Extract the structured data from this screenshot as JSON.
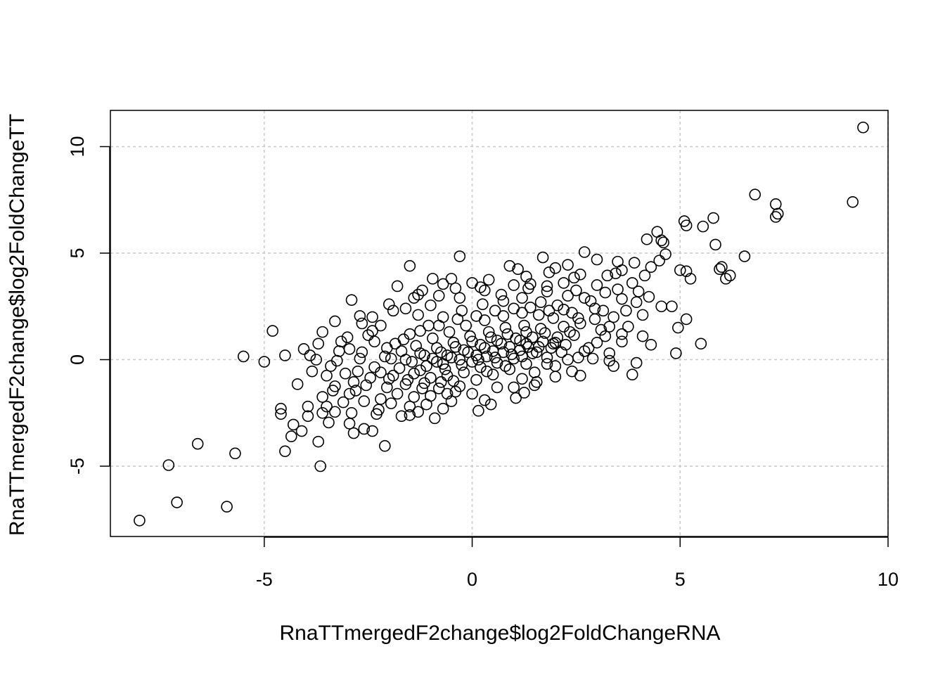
{
  "chart_data": {
    "type": "scatter",
    "xlabel": "RnaTTmergedF2change$log2FoldChangeRNA",
    "ylabel": "RnaTTmergedF2change$log2FoldChangeTT",
    "xlim": [
      -8.7,
      10.0
    ],
    "ylim": [
      -8.3,
      11.7
    ],
    "x_ticks": [
      -5,
      0,
      5,
      10
    ],
    "y_ticks": [
      -5,
      0,
      5,
      10
    ],
    "grid": true,
    "marker": "open-circle",
    "points": [
      [
        9.4,
        10.9
      ],
      [
        9.15,
        7.4
      ],
      [
        6.8,
        7.75
      ],
      [
        7.3,
        7.3
      ],
      [
        7.35,
        6.85
      ],
      [
        7.3,
        6.7
      ],
      [
        5.8,
        6.65
      ],
      [
        5.55,
        6.25
      ],
      [
        5.1,
        6.5
      ],
      [
        5.15,
        6.3
      ],
      [
        5.85,
        5.4
      ],
      [
        6.55,
        4.85
      ],
      [
        4.45,
        6.0
      ],
      [
        4.55,
        5.6
      ],
      [
        4.6,
        5.5
      ],
      [
        4.2,
        5.65
      ],
      [
        4.65,
        4.95
      ],
      [
        4.5,
        4.65
      ],
      [
        5.95,
        4.25
      ],
      [
        6.0,
        4.35
      ],
      [
        6.1,
        3.8
      ],
      [
        6.2,
        3.95
      ],
      [
        5.0,
        4.2
      ],
      [
        5.15,
        4.15
      ],
      [
        5.25,
        3.8
      ],
      [
        4.95,
        1.5
      ],
      [
        5.15,
        1.9
      ],
      [
        5.5,
        0.75
      ],
      [
        4.9,
        0.3
      ],
      [
        4.55,
        2.5
      ],
      [
        4.8,
        2.5
      ],
      [
        4.3,
        0.7
      ],
      [
        4.1,
        1.1
      ],
      [
        3.85,
        -0.7
      ],
      [
        3.95,
        -0.15
      ],
      [
        2.7,
        5.05
      ],
      [
        1.7,
        4.8
      ],
      [
        -1.5,
        4.4
      ],
      [
        -0.3,
        4.85
      ],
      [
        -2.9,
        2.8
      ],
      [
        -4.8,
        1.35
      ],
      [
        -4.5,
        0.2
      ],
      [
        -5.5,
        0.15
      ],
      [
        -5.0,
        -0.1
      ],
      [
        -4.2,
        -1.15
      ],
      [
        -4.6,
        -2.3
      ],
      [
        -4.6,
        -2.55
      ],
      [
        -4.3,
        -3.05
      ],
      [
        -4.1,
        -3.35
      ],
      [
        -3.95,
        -2.65
      ],
      [
        -3.95,
        -2.2
      ],
      [
        -4.35,
        -3.6
      ],
      [
        -4.5,
        -4.3
      ],
      [
        -3.7,
        -3.85
      ],
      [
        -3.65,
        -5.0
      ],
      [
        -3.45,
        -2.95
      ],
      [
        -3.3,
        -2.45
      ],
      [
        -2.95,
        -3.0
      ],
      [
        -2.85,
        -3.45
      ],
      [
        -2.6,
        -3.25
      ],
      [
        -2.4,
        -3.35
      ],
      [
        -2.1,
        -4.05
      ],
      [
        -1.7,
        -2.65
      ],
      [
        -0.9,
        -2.75
      ],
      [
        -6.6,
        -3.95
      ],
      [
        -5.7,
        -4.4
      ],
      [
        -7.3,
        -4.95
      ],
      [
        -7.1,
        -6.7
      ],
      [
        -5.9,
        -6.9
      ],
      [
        -8.0,
        -7.55
      ],
      [
        -3.6,
        1.3
      ],
      [
        -3.9,
        0.2
      ],
      [
        -4.05,
        0.5
      ],
      [
        -3.7,
        0.75
      ],
      [
        -3.85,
        -0.55
      ],
      [
        -3.5,
        -0.75
      ],
      [
        -3.3,
        -1.25
      ],
      [
        -3.6,
        -1.75
      ],
      [
        -3.1,
        -2.0
      ],
      [
        -2.8,
        -1.45
      ],
      [
        -3.15,
        0.85
      ],
      [
        -3.0,
        1.05
      ],
      [
        -3.3,
        1.8
      ],
      [
        -2.7,
        2.05
      ],
      [
        -2.65,
        1.7
      ],
      [
        -1.8,
        3.45
      ],
      [
        -1.2,
        3.25
      ],
      [
        -0.5,
        3.8
      ],
      [
        0.4,
        3.75
      ],
      [
        0.9,
        4.4
      ],
      [
        1.1,
        4.25
      ],
      [
        1.35,
        3.35
      ],
      [
        2.0,
        4.3
      ],
      [
        2.3,
        4.45
      ],
      [
        2.6,
        4.0
      ],
      [
        3.0,
        4.7
      ],
      [
        3.5,
        4.6
      ],
      [
        3.6,
        4.2
      ],
      [
        3.9,
        4.55
      ],
      [
        3.85,
        3.6
      ],
      [
        3.5,
        3.3
      ],
      [
        3.2,
        3.15
      ],
      [
        3.6,
        2.85
      ],
      [
        3.95,
        2.7
      ],
      [
        3.7,
        2.3
      ],
      [
        3.3,
        1.55
      ],
      [
        3.6,
        1.2
      ],
      [
        3.6,
        0.85
      ],
      [
        3.3,
        0.3
      ],
      [
        2.9,
        0.05
      ],
      [
        3.4,
        -0.3
      ],
      [
        2.4,
        -0.55
      ],
      [
        2.6,
        -0.75
      ],
      [
        2.0,
        -0.8
      ],
      [
        1.55,
        -1.05
      ],
      [
        1.2,
        -0.9
      ],
      [
        1.05,
        -1.8
      ],
      [
        0.45,
        -2.1
      ],
      [
        0.15,
        -2.4
      ],
      [
        -0.5,
        -1.95
      ],
      [
        -0.6,
        -1.6
      ],
      [
        -1.1,
        -2.1
      ],
      [
        -1.4,
        -1.75
      ],
      [
        -1.95,
        -2.05
      ],
      [
        -2.2,
        -1.85
      ],
      [
        -2.6,
        -1.95
      ],
      [
        -2.25,
        -2.35
      ],
      [
        -2.55,
        -1.2
      ],
      [
        -2.75,
        -0.55
      ],
      [
        -2.65,
        0.35
      ],
      [
        -2.35,
        0.85
      ],
      [
        -2.4,
        1.35
      ],
      [
        -2.2,
        1.6
      ],
      [
        -1.6,
        2.4
      ],
      [
        -1.3,
        2.1
      ],
      [
        -0.8,
        3.0
      ],
      [
        -1.0,
        2.55
      ],
      [
        -0.3,
        2.9
      ],
      [
        0.2,
        3.4
      ],
      [
        0.7,
        3.05
      ],
      [
        1.4,
        3.55
      ],
      [
        1.8,
        3.2
      ],
      [
        2.2,
        3.6
      ],
      [
        2.5,
        3.25
      ],
      [
        2.85,
        2.75
      ],
      [
        3.15,
        2.3
      ],
      [
        2.95,
        1.9
      ],
      [
        3.2,
        1.1
      ],
      [
        2.8,
        0.55
      ],
      [
        2.55,
        0.1
      ],
      [
        2.15,
        0.35
      ],
      [
        1.8,
        0.1
      ],
      [
        1.3,
        -0.2
      ],
      [
        0.9,
        -0.45
      ],
      [
        0.5,
        -0.7
      ],
      [
        0.1,
        -0.95
      ],
      [
        -0.3,
        -1.25
      ],
      [
        -0.75,
        -1.05
      ],
      [
        -1.2,
        -1.35
      ],
      [
        -1.6,
        -1.15
      ],
      [
        -2.0,
        -0.9
      ],
      [
        -2.35,
        -0.35
      ],
      [
        -2.1,
        0.15
      ],
      [
        -1.85,
        0.75
      ],
      [
        -1.5,
        1.2
      ],
      [
        -1.05,
        1.6
      ],
      [
        -0.7,
        2.0
      ],
      [
        -0.25,
        2.3
      ],
      [
        0.25,
        2.6
      ],
      [
        0.75,
        2.75
      ],
      [
        1.2,
        2.9
      ],
      [
        1.65,
        2.7
      ],
      [
        2.05,
        2.55
      ],
      [
        2.4,
        2.2
      ],
      [
        2.6,
        1.7
      ],
      [
        2.45,
        1.15
      ],
      [
        2.25,
        0.7
      ],
      [
        1.9,
        0.55
      ],
      [
        1.45,
        0.3
      ],
      [
        1.0,
        0.05
      ],
      [
        0.6,
        -0.15
      ],
      [
        0.2,
        -0.35
      ],
      [
        -0.2,
        -0.6
      ],
      [
        -0.6,
        -0.75
      ],
      [
        -1.0,
        -0.85
      ],
      [
        -1.4,
        -0.65
      ],
      [
        -1.75,
        -0.4
      ],
      [
        -1.95,
        0.05
      ],
      [
        -1.7,
        0.4
      ],
      [
        -1.35,
        0.65
      ],
      [
        -0.95,
        1.0
      ],
      [
        -0.55,
        1.3
      ],
      [
        -0.15,
        1.6
      ],
      [
        0.3,
        1.85
      ],
      [
        0.75,
        2.05
      ],
      [
        1.2,
        2.2
      ],
      [
        1.6,
        2.1
      ],
      [
        1.95,
        1.95
      ],
      [
        2.2,
        1.55
      ],
      [
        2.05,
        1.05
      ],
      [
        1.7,
        0.85
      ],
      [
        1.3,
        0.75
      ],
      [
        0.9,
        0.6
      ],
      [
        0.5,
        0.4
      ],
      [
        0.1,
        0.2
      ],
      [
        -0.3,
        0.0
      ],
      [
        -0.7,
        -0.2
      ],
      [
        -1.1,
        -0.3
      ],
      [
        -1.45,
        -0.1
      ],
      [
        -1.25,
        0.3
      ],
      [
        -0.85,
        0.55
      ],
      [
        -0.45,
        0.8
      ],
      [
        -0.05,
        1.1
      ],
      [
        0.4,
        1.3
      ],
      [
        0.8,
        1.5
      ],
      [
        1.25,
        1.6
      ],
      [
        1.65,
        1.45
      ],
      [
        1.45,
        1.05
      ],
      [
        1.05,
        1.0
      ],
      [
        0.6,
        0.9
      ],
      [
        0.2,
        0.7
      ],
      [
        -0.2,
        0.45
      ],
      [
        -0.6,
        0.2
      ],
      [
        -0.95,
        0.05
      ],
      [
        0.0,
        -0.1
      ],
      [
        0.35,
        0.15
      ],
      [
        0.75,
        0.35
      ],
      [
        1.15,
        0.45
      ],
      [
        -1.8,
        -1.6
      ],
      [
        -1.5,
        -2.2
      ],
      [
        -2.3,
        -2.55
      ],
      [
        -1.0,
        -1.7
      ],
      [
        -0.4,
        -1.5
      ],
      [
        0.0,
        -1.6
      ],
      [
        0.6,
        -1.3
      ],
      [
        1.0,
        -1.3
      ],
      [
        1.5,
        -0.6
      ],
      [
        2.0,
        -0.3
      ],
      [
        2.3,
        0.0
      ],
      [
        2.7,
        0.4
      ],
      [
        3.0,
        0.8
      ],
      [
        3.1,
        1.4
      ],
      [
        2.95,
        2.4
      ],
      [
        2.7,
        2.9
      ],
      [
        2.3,
        3.0
      ],
      [
        1.8,
        3.45
      ],
      [
        1.0,
        3.5
      ],
      [
        0.3,
        3.25
      ],
      [
        -0.4,
        3.35
      ],
      [
        -1.4,
        2.9
      ],
      [
        -1.9,
        2.3
      ],
      [
        -2.5,
        1.15
      ],
      [
        -2.7,
        0.05
      ],
      [
        -2.45,
        -0.85
      ],
      [
        -2.05,
        -1.3
      ],
      [
        -1.3,
        -2.45
      ],
      [
        -0.7,
        -2.3
      ],
      [
        0.3,
        -1.9
      ],
      [
        -3.4,
        -0.3
      ],
      [
        -3.2,
        0.4
      ],
      [
        -3.05,
        -0.65
      ],
      [
        -3.35,
        -1.45
      ],
      [
        -2.9,
        -2.5
      ],
      [
        -3.6,
        -2.5
      ],
      [
        -3.75,
        0.0
      ],
      [
        -3.25,
        -0.05
      ],
      [
        -2.95,
        0.5
      ],
      [
        -2.85,
        -1.05
      ],
      [
        -2.95,
        -1.6
      ],
      [
        -3.5,
        -2.2
      ],
      [
        -1.5,
        -2.6
      ],
      [
        1.25,
        -1.55
      ],
      [
        1.5,
        -1.2
      ],
      [
        1.8,
        -0.2
      ],
      [
        3.3,
        -0.05
      ],
      [
        3.4,
        2.0
      ],
      [
        3.75,
        1.55
      ],
      [
        4.1,
        2.1
      ],
      [
        4.25,
        2.95
      ],
      [
        4.0,
        3.2
      ],
      [
        4.3,
        4.35
      ],
      [
        4.15,
        3.95
      ],
      [
        3.45,
        4.05
      ],
      [
        3.0,
        3.5
      ],
      [
        3.25,
        3.95
      ],
      [
        2.45,
        3.85
      ],
      [
        1.85,
        4.1
      ],
      [
        1.3,
        3.9
      ],
      [
        0.0,
        3.6
      ],
      [
        -0.7,
        3.55
      ],
      [
        -0.95,
        3.8
      ],
      [
        -1.3,
        3.05
      ],
      [
        -2.0,
        2.6
      ],
      [
        -2.4,
        2.0
      ],
      [
        -2.2,
        -0.6
      ],
      [
        -1.9,
        -0.75
      ],
      [
        -1.55,
        -0.95
      ],
      [
        -1.15,
        -1.1
      ],
      [
        -0.8,
        -1.35
      ],
      [
        -0.45,
        -1.0
      ],
      [
        0.35,
        -0.55
      ],
      [
        0.8,
        -0.3
      ],
      [
        1.2,
        0.15
      ],
      [
        1.55,
        0.35
      ],
      [
        2.0,
        0.8
      ],
      [
        2.35,
        1.3
      ],
      [
        2.55,
        1.95
      ],
      [
        2.2,
        2.35
      ],
      [
        1.85,
        2.3
      ],
      [
        1.4,
        2.45
      ],
      [
        1.0,
        2.4
      ],
      [
        0.55,
        2.3
      ],
      [
        0.1,
        2.05
      ],
      [
        -0.35,
        1.9
      ],
      [
        -0.8,
        1.6
      ],
      [
        -1.25,
        1.35
      ],
      [
        -1.65,
        0.95
      ],
      [
        -2.05,
        0.55
      ],
      [
        -1.6,
        0.0
      ],
      [
        -1.15,
        0.2
      ],
      [
        -0.75,
        0.35
      ],
      [
        -0.4,
        0.6
      ],
      [
        0.0,
        0.85
      ],
      [
        0.45,
        1.05
      ],
      [
        0.85,
        1.2
      ],
      [
        1.3,
        1.3
      ],
      [
        1.75,
        1.25
      ],
      [
        1.95,
        0.75
      ],
      [
        1.6,
        0.6
      ],
      [
        1.15,
        0.9
      ],
      [
        0.7,
        0.75
      ],
      [
        0.3,
        0.55
      ],
      [
        -0.1,
        0.35
      ],
      [
        -0.5,
        0.1
      ],
      [
        -0.85,
        -0.1
      ],
      [
        -1.25,
        -0.5
      ],
      [
        -0.65,
        -0.45
      ],
      [
        -0.25,
        -0.25
      ],
      [
        0.15,
        0.0
      ],
      [
        0.55,
        0.1
      ],
      [
        0.95,
        0.25
      ],
      [
        1.35,
        0.6
      ]
    ]
  }
}
